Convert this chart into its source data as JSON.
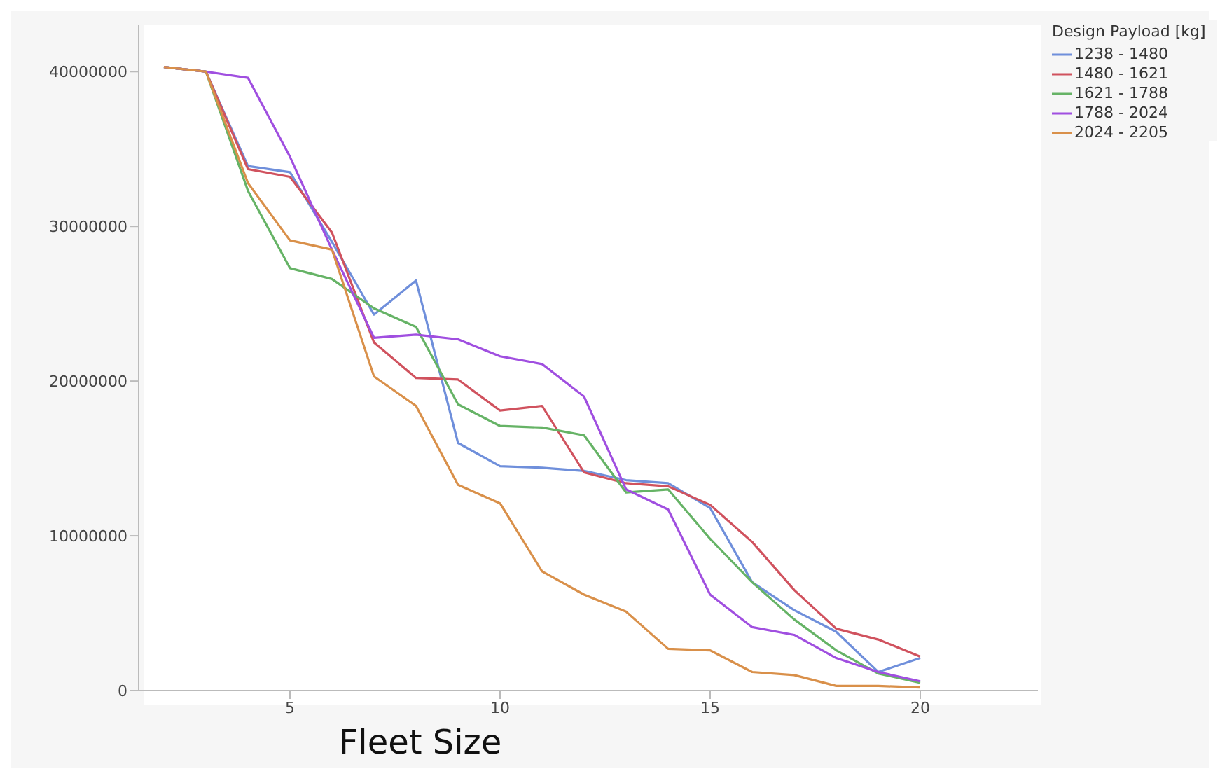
{
  "chart_data": {
    "type": "line",
    "xlabel": "Fleet Size",
    "legend_title": "Design Payload [kg]",
    "legend": "top right",
    "grid": false,
    "marker": "none",
    "line_style": "solid",
    "x": [
      2,
      3,
      4,
      5,
      6,
      7,
      8,
      9,
      10,
      11,
      12,
      13,
      14,
      15,
      16,
      17,
      18,
      19,
      20
    ],
    "xlim": [
      1.4,
      22.8
    ],
    "xticks": [
      5,
      10,
      15,
      20
    ],
    "ylim": [
      0,
      43000000
    ],
    "yticks": [
      0,
      10000000,
      20000000,
      30000000,
      40000000
    ],
    "series": [
      {
        "name": "1238 - 1480",
        "color": "#6f8fdb",
        "values": [
          40300000,
          40000000,
          33900000,
          33500000,
          29000000,
          24300000,
          26500000,
          16000000,
          14500000,
          14400000,
          14200000,
          13600000,
          13400000,
          11800000,
          7000000,
          5200000,
          3800000,
          1200000,
          2100000
        ]
      },
      {
        "name": "1480 - 1621",
        "color": "#d0525e",
        "values": [
          40300000,
          40000000,
          33700000,
          33200000,
          29600000,
          22500000,
          20200000,
          20100000,
          18100000,
          18400000,
          14100000,
          13400000,
          13200000,
          12000000,
          9600000,
          6500000,
          4000000,
          3300000,
          2200000
        ]
      },
      {
        "name": "1621 - 1788",
        "color": "#66b366",
        "values": [
          40300000,
          40000000,
          32300000,
          27300000,
          26600000,
          24700000,
          23500000,
          18500000,
          17100000,
          17000000,
          16500000,
          12800000,
          13000000,
          9800000,
          7000000,
          4600000,
          2600000,
          1100000,
          500000
        ]
      },
      {
        "name": "1788 - 2024",
        "color": "#a04fe0",
        "values": [
          40300000,
          40000000,
          39600000,
          34500000,
          28500000,
          22800000,
          23000000,
          22700000,
          21600000,
          21100000,
          19000000,
          13000000,
          11700000,
          6200000,
          4100000,
          3600000,
          2100000,
          1200000,
          600000
        ]
      },
      {
        "name": "2024 - 2205",
        "color": "#d9904a",
        "values": [
          40300000,
          40000000,
          32800000,
          29100000,
          28500000,
          20300000,
          18400000,
          13300000,
          12100000,
          7700000,
          6200000,
          5100000,
          2700000,
          2600000,
          1200000,
          1000000,
          300000,
          300000,
          200000
        ]
      }
    ]
  }
}
